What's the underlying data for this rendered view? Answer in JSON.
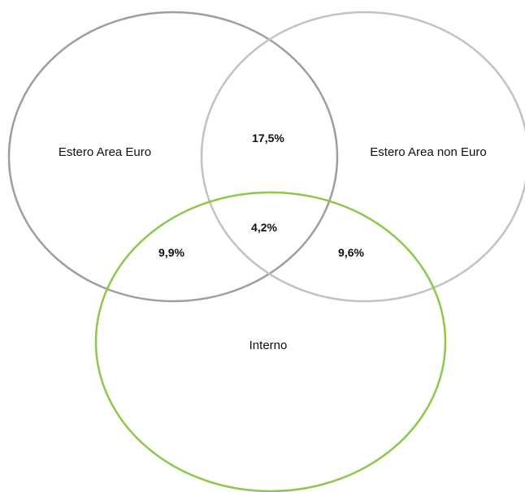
{
  "sets": [
    {
      "key": "estero_area_euro",
      "label": "Estero Area Euro",
      "color": "#9e9e9e"
    },
    {
      "key": "estero_area_non_euro",
      "label": "Estero Area non Euro",
      "color": "#c2c2c2"
    },
    {
      "key": "interno",
      "label": "Interno",
      "color": "#8cc84b"
    }
  ],
  "overlaps": {
    "euro_non_euro": "17,5%",
    "all_three": "4,2%",
    "euro_interno": "9,9%",
    "non_euro_interno": "9,6%"
  }
}
